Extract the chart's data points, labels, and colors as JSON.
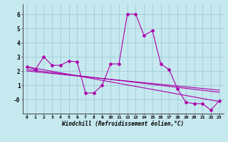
{
  "xlabel": "Windchill (Refroidissement éolien,°C)",
  "background_color": "#c6e8ef",
  "grid_color": "#9ecdd8",
  "line_color": "#aa00aa",
  "xlim": [
    -0.5,
    23.5
  ],
  "ylim": [
    -1.0,
    6.7
  ],
  "xticks": [
    0,
    1,
    2,
    3,
    4,
    5,
    6,
    7,
    8,
    9,
    10,
    11,
    12,
    13,
    14,
    15,
    16,
    17,
    18,
    19,
    20,
    21,
    22,
    23
  ],
  "yticks": [
    0,
    1,
    2,
    3,
    4,
    5,
    6
  ],
  "ytick_labels": [
    "-0",
    "1",
    "2",
    "3",
    "4",
    "5",
    "6"
  ],
  "main_x": [
    0,
    1,
    2,
    3,
    4,
    5,
    6,
    7,
    8,
    9,
    10,
    11,
    12,
    13,
    14,
    15,
    16,
    17,
    18,
    19,
    20,
    21,
    22,
    23
  ],
  "main_y": [
    2.3,
    2.1,
    3.0,
    2.4,
    2.4,
    2.7,
    2.65,
    0.45,
    0.45,
    1.0,
    2.5,
    2.5,
    6.0,
    6.0,
    4.5,
    4.85,
    2.5,
    2.1,
    0.75,
    -0.2,
    -0.3,
    -0.3,
    -0.75,
    -0.1
  ],
  "line1_x": [
    0,
    23
  ],
  "line1_y": [
    2.3,
    -0.15
  ],
  "line2_x": [
    0,
    23
  ],
  "line2_y": [
    2.1,
    0.5
  ],
  "line3_x": [
    0,
    23
  ],
  "line3_y": [
    2.0,
    0.65
  ]
}
